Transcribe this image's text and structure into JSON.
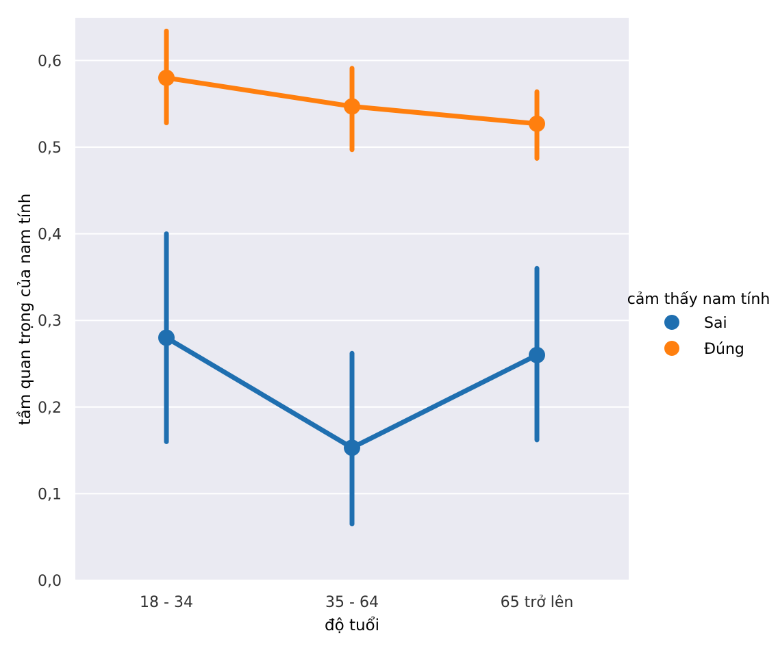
{
  "chart_data": {
    "type": "line",
    "subtype": "pointplot-with-error-bars",
    "xlabel": "độ tuổi",
    "ylabel": "tầm quan trọng của nam tính",
    "categories": [
      "18 - 34",
      "35 - 64",
      "65 trở lên"
    ],
    "ylim": [
      0.0,
      0.65
    ],
    "yticks": [
      0.0,
      0.1,
      0.2,
      0.3,
      0.4,
      0.5,
      0.6
    ],
    "ytick_labels": [
      "0,0",
      "0,1",
      "0,2",
      "0,3",
      "0,4",
      "0,5",
      "0,6"
    ],
    "grid": true,
    "background": "#eaeaf2",
    "legend": {
      "title": "cảm thấy nam tính",
      "placement": "right"
    },
    "series": [
      {
        "name": "Sai",
        "color": "#1f6fb0",
        "values": [
          0.28,
          0.153,
          0.26
        ],
        "ci_low": [
          0.16,
          0.065,
          0.162
        ],
        "ci_high": [
          0.4,
          0.262,
          0.36
        ]
      },
      {
        "name": "Đúng",
        "color": "#ff7f0e",
        "values": [
          0.58,
          0.547,
          0.527
        ],
        "ci_low": [
          0.528,
          0.497,
          0.487
        ],
        "ci_high": [
          0.634,
          0.591,
          0.564
        ]
      }
    ]
  }
}
